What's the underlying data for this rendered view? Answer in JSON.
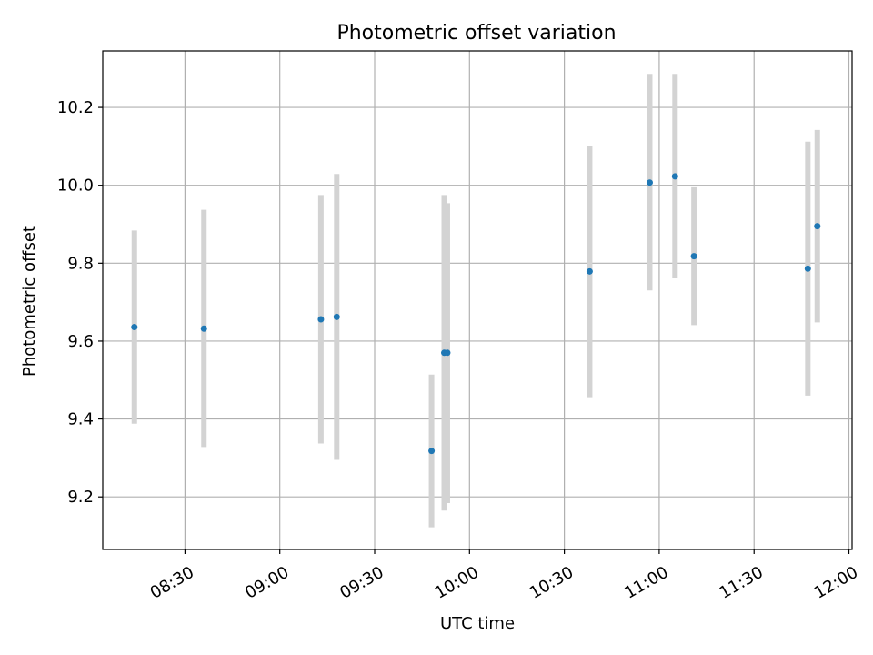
{
  "chart_data": {
    "type": "scatter",
    "title": "Photometric offset variation",
    "xlabel": "UTC time",
    "ylabel": "Photometric offset",
    "x_ticks": [
      "08:30",
      "09:00",
      "09:30",
      "10:00",
      "10:30",
      "11:00",
      "11:30",
      "12:00"
    ],
    "y_ticks": [
      "9.2",
      "9.4",
      "9.6",
      "9.8",
      "10.0",
      "10.2"
    ],
    "xlim": [
      "08:04",
      "12:01"
    ],
    "ylim": [
      9.065,
      10.345
    ],
    "grid": true,
    "point_color": "#1f77b4",
    "errorbar_color": "#d3d3d3",
    "points": [
      {
        "x": "08:14",
        "y": 9.636,
        "ylow": 9.388,
        "yhigh": 9.884
      },
      {
        "x": "08:36",
        "y": 9.632,
        "ylow": 9.328,
        "yhigh": 9.937
      },
      {
        "x": "09:13",
        "y": 9.656,
        "ylow": 9.337,
        "yhigh": 9.975
      },
      {
        "x": "09:18",
        "y": 9.662,
        "ylow": 9.295,
        "yhigh": 10.029
      },
      {
        "x": "09:48",
        "y": 9.318,
        "ylow": 9.122,
        "yhigh": 9.514
      },
      {
        "x": "09:52",
        "y": 9.57,
        "ylow": 9.165,
        "yhigh": 9.975
      },
      {
        "x": "09:53",
        "y": 9.57,
        "ylow": 9.184,
        "yhigh": 9.954
      },
      {
        "x": "10:38",
        "y": 9.779,
        "ylow": 9.456,
        "yhigh": 10.102
      },
      {
        "x": "10:57",
        "y": 10.007,
        "ylow": 9.73,
        "yhigh": 10.286
      },
      {
        "x": "11:05",
        "y": 10.023,
        "ylow": 9.761,
        "yhigh": 10.286
      },
      {
        "x": "11:11",
        "y": 9.818,
        "ylow": 9.641,
        "yhigh": 9.995
      },
      {
        "x": "11:47",
        "y": 9.786,
        "ylow": 9.46,
        "yhigh": 10.112
      },
      {
        "x": "11:50",
        "y": 9.895,
        "ylow": 9.648,
        "yhigh": 10.142
      }
    ]
  }
}
